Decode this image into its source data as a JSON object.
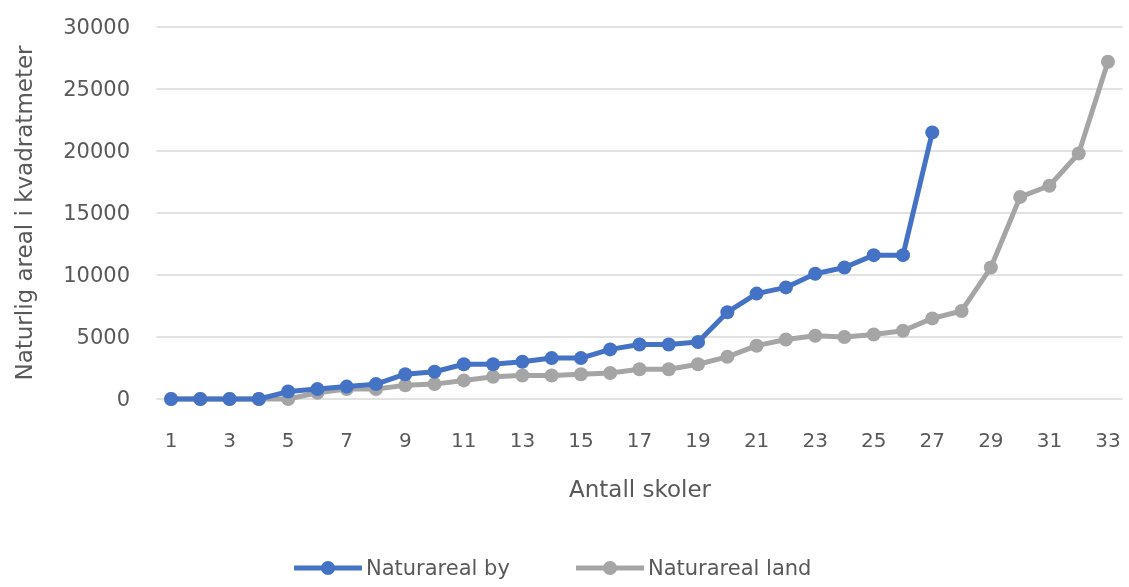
{
  "chart_data": {
    "type": "line",
    "xlabel": "Antall skoler",
    "ylabel": "Naturlig areal i kvadratmeter",
    "x": [
      1,
      2,
      3,
      4,
      5,
      6,
      7,
      8,
      9,
      10,
      11,
      12,
      13,
      14,
      15,
      16,
      17,
      18,
      19,
      20,
      21,
      22,
      23,
      24,
      25,
      26,
      27,
      28,
      29,
      30,
      31,
      32,
      33
    ],
    "xlim": [
      0.5,
      33.5
    ],
    "xticks": [
      1,
      3,
      5,
      7,
      9,
      11,
      13,
      15,
      17,
      19,
      21,
      23,
      25,
      27,
      29,
      31,
      33
    ],
    "series": [
      {
        "name": "Naturareal by",
        "color": "#4472c4",
        "values": [
          0,
          0,
          0,
          0,
          600,
          800,
          1000,
          1200,
          2000,
          2200,
          2800,
          2800,
          3000,
          3300,
          3300,
          4000,
          4400,
          4400,
          4600,
          7000,
          8500,
          9000,
          10100,
          10600,
          11600,
          11600,
          21500,
          null,
          null,
          null,
          null,
          null,
          null
        ]
      },
      {
        "name": "Naturareal land",
        "color": "#a5a5a5",
        "values": [
          0,
          0,
          0,
          0,
          0,
          500,
          800,
          800,
          1100,
          1200,
          1500,
          1800,
          1900,
          1900,
          2000,
          2100,
          2400,
          2400,
          2800,
          3400,
          4300,
          4800,
          5100,
          5000,
          5200,
          5500,
          6500,
          7100,
          10600,
          16300,
          17200,
          19800,
          27200
        ]
      }
    ],
    "ylim": [
      0,
      30000
    ],
    "yticks": [
      0,
      5000,
      10000,
      15000,
      20000,
      25000,
      30000
    ],
    "grid": "y",
    "legend": "bottom",
    "marker": "circle",
    "line_style": "solid"
  }
}
